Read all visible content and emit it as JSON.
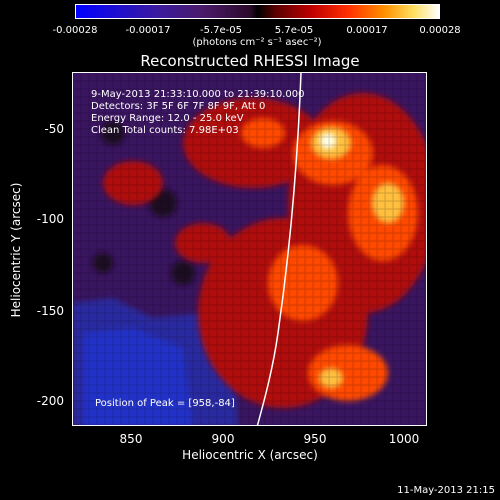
{
  "colorbar": {
    "ticks": [
      "-0.00028",
      "-0.00017",
      "-5.7e-05",
      "5.7e-05",
      "0.00017",
      "0.00028"
    ],
    "units": "(photons cm⁻² s⁻¹ asec⁻²)"
  },
  "title": "Reconstructed RHESSI Image",
  "info": {
    "time_range": "9-May-2013 21:33:10.000 to 21:39:10.000",
    "detectors": "Detectors: 3F 5F 6F 7F 8F 9F, Att 0",
    "energy_range": "Energy Range: 12.0 - 25.0 keV",
    "clean": "Clean   Total counts: 7.98E+03",
    "peak": "Position of Peak = [958,-84]"
  },
  "axes": {
    "xlabel": "Heliocentric X (arcsec)",
    "ylabel": "Heliocentric Y (arcsec)",
    "xticks": [
      "850",
      "900",
      "950",
      "1000"
    ],
    "yticks": [
      "-50",
      "-100",
      "-150",
      "-200"
    ]
  },
  "footer": "11-May-2013 21:15"
}
